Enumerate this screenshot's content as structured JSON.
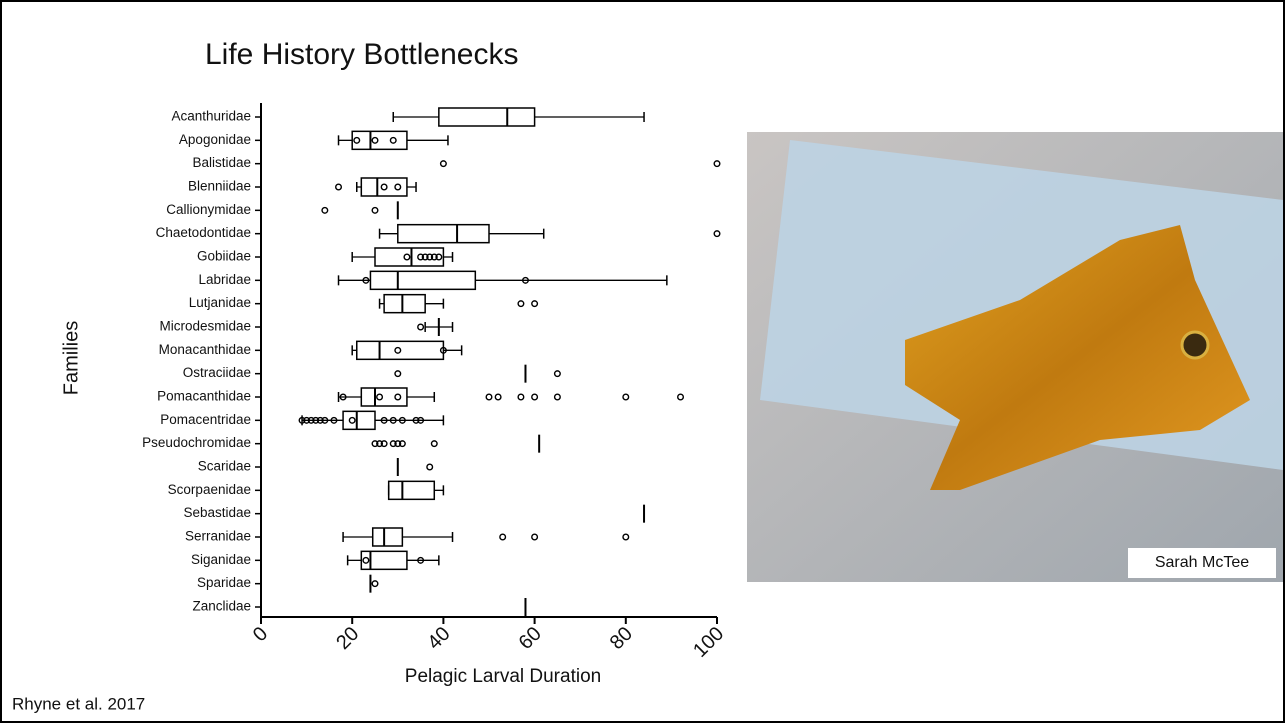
{
  "chart_data": {
    "type": "box",
    "title": "Life History Bottlenecks",
    "xlabel": "Pelagic Larval Duration",
    "ylabel": "Families",
    "categories": [
      "Acanthuridae",
      "Apogonidae",
      "Balistidae",
      "Blenniidae",
      "Callionymidae",
      "Chaetodontidae",
      "Gobiidae",
      "Labridae",
      "Lutjanidae",
      "Microdesmidae",
      "Monacanthidae",
      "Ostraciidae",
      "Pomacanthidae",
      "Pomacentridae",
      "Pseudochromidae",
      "Scaridae",
      "Scorpaenidae",
      "Sebastidae",
      "Serranidae",
      "Siganidae",
      "Sparidae",
      "Zanclidae"
    ],
    "boxes": [
      {
        "min": 29,
        "q1": 39,
        "median": 54,
        "q3": 60,
        "max": 84,
        "outliers": []
      },
      {
        "min": 17,
        "q1": 20,
        "median": 24,
        "q3": 32,
        "max": 41,
        "outliers": [
          21,
          25,
          29
        ]
      },
      {
        "min": null,
        "q1": null,
        "median": null,
        "q3": null,
        "max": null,
        "outliers": [
          40,
          100
        ]
      },
      {
        "min": 21,
        "q1": 22,
        "median": 25.5,
        "q3": 32,
        "max": 34,
        "outliers": [
          17,
          27,
          30
        ]
      },
      {
        "min": null,
        "q1": null,
        "median": 30,
        "q3": null,
        "max": null,
        "outliers": [
          14,
          25
        ]
      },
      {
        "min": 26,
        "q1": 30,
        "median": 43,
        "q3": 50,
        "max": 62,
        "outliers": [
          100
        ]
      },
      {
        "min": 20,
        "q1": 25,
        "median": 33,
        "q3": 40,
        "max": 42,
        "outliers": [
          32,
          35,
          36,
          37,
          38,
          39
        ]
      },
      {
        "min": 17,
        "q1": 24,
        "median": 30,
        "q3": 47,
        "max": 89,
        "outliers": [
          23,
          58
        ]
      },
      {
        "min": 26,
        "q1": 27,
        "median": 31,
        "q3": 36,
        "max": 40,
        "outliers": [
          57,
          60
        ]
      },
      {
        "min": 36,
        "q1": null,
        "median": 39,
        "q3": null,
        "max": 42,
        "outliers": [
          35
        ]
      },
      {
        "min": 20,
        "q1": 21,
        "median": 26,
        "q3": 40,
        "max": 44,
        "outliers": [
          30,
          40
        ]
      },
      {
        "min": null,
        "q1": null,
        "median": 58,
        "q3": null,
        "max": null,
        "outliers": [
          30,
          65
        ]
      },
      {
        "min": 17,
        "q1": 22,
        "median": 25,
        "q3": 32,
        "max": 38,
        "outliers": [
          18,
          26,
          30,
          50,
          52,
          57,
          60,
          65,
          80,
          92
        ]
      },
      {
        "min": 9,
        "q1": 18,
        "median": 21,
        "q3": 25,
        "max": 40,
        "outliers": [
          9,
          10,
          11,
          12,
          13,
          14,
          16,
          20,
          27,
          29,
          31,
          34,
          35
        ]
      },
      {
        "min": null,
        "q1": null,
        "median": 61,
        "q3": null,
        "max": null,
        "outliers": [
          25,
          26,
          27,
          29,
          30,
          31,
          38
        ]
      },
      {
        "min": null,
        "q1": null,
        "median": 30,
        "q3": null,
        "max": null,
        "outliers": [
          37
        ]
      },
      {
        "min": 28,
        "q1": 28,
        "median": 31,
        "q3": 38,
        "max": 40,
        "outliers": []
      },
      {
        "min": null,
        "q1": null,
        "median": 84,
        "q3": null,
        "max": null,
        "outliers": []
      },
      {
        "min": 18,
        "q1": 24.5,
        "median": 27,
        "q3": 31,
        "max": 42,
        "outliers": [
          53,
          60,
          80
        ]
      },
      {
        "min": 19,
        "q1": 22,
        "median": 24,
        "q3": 32,
        "max": 39,
        "outliers": [
          23,
          35
        ]
      },
      {
        "min": null,
        "q1": null,
        "median": 24,
        "q3": null,
        "max": null,
        "outliers": [
          25
        ]
      },
      {
        "min": null,
        "q1": null,
        "median": 58,
        "q3": null,
        "max": null,
        "outliers": []
      }
    ],
    "xlim": [
      0,
      100
    ],
    "xticks": [
      0,
      20,
      40,
      60,
      80,
      100
    ],
    "color": "#000000"
  },
  "photo": {
    "credit": "Sarah McTee"
  },
  "citation": "Rhyne et al. 2017"
}
